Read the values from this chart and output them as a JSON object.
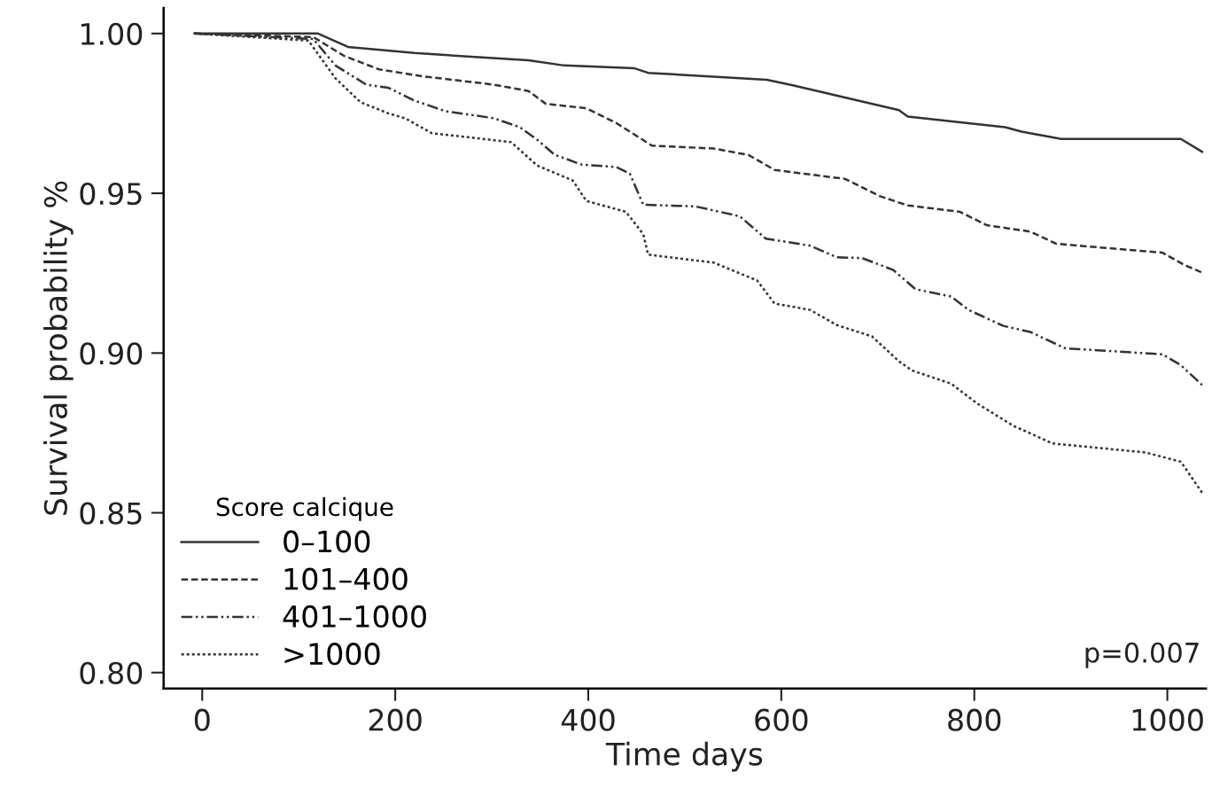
{
  "chart_data": {
    "type": "line",
    "xlabel": "Time days",
    "ylabel": "Survival probability %",
    "legend_title": "Score calcique",
    "legend": "bottom left",
    "grid": false,
    "marker": "none",
    "xlim": [
      -40,
      1040
    ],
    "ylim": [
      0.795,
      1.008
    ],
    "xticks": [
      0,
      200,
      400,
      600,
      800,
      1000
    ],
    "yticks": [
      {
        "value": 0.8,
        "label": "0.80"
      },
      {
        "value": 0.85,
        "label": "0.85"
      },
      {
        "value": 0.9,
        "label": "0.90"
      },
      {
        "value": 0.95,
        "label": "0.95"
      },
      {
        "value": 1.0,
        "label": "1.00"
      }
    ],
    "annotations": [
      "p=0.007"
    ],
    "series": [
      {
        "name": "0–100",
        "color": "#333333",
        "line_style": "solid",
        "x": [
          -8,
          120,
          151,
          220,
          338,
          375,
          448,
          462,
          585,
          612,
          722,
          731,
          832,
          849,
          890,
          1014,
          1036
        ],
        "values": [
          1.0,
          1.0,
          0.9958,
          0.9939,
          0.9916,
          0.99,
          0.9891,
          0.9877,
          0.9855,
          0.9838,
          0.976,
          0.974,
          0.9707,
          0.9693,
          0.967,
          0.967,
          0.963
        ]
      },
      {
        "name": "101–400",
        "color": "#333333",
        "line_style": "dashed",
        "x": [
          -8,
          115,
          147,
          183,
          229,
          302,
          338,
          356,
          398,
          429,
          466,
          530,
          566,
          593,
          666,
          703,
          731,
          785,
          813,
          858,
          885,
          995,
          1018,
          1036
        ],
        "values": [
          1.0,
          0.9989,
          0.993,
          0.9888,
          0.9866,
          0.984,
          0.982,
          0.978,
          0.9766,
          0.972,
          0.9649,
          0.964,
          0.962,
          0.9573,
          0.9545,
          0.949,
          0.9462,
          0.9442,
          0.94,
          0.938,
          0.9342,
          0.9314,
          0.9275,
          0.9252
        ]
      },
      {
        "name": "401–1000",
        "color": "#333333",
        "line_style": "dashdot",
        "x": [
          -8,
          115,
          138,
          170,
          193,
          220,
          252,
          302,
          329,
          347,
          365,
          393,
          429,
          443,
          457,
          511,
          557,
          584,
          630,
          657,
          684,
          716,
          739,
          776,
          794,
          830,
          858,
          894,
          995,
          1014,
          1036
        ],
        "values": [
          1.0,
          0.9983,
          0.99,
          0.984,
          0.983,
          0.979,
          0.9757,
          0.9735,
          0.9707,
          0.9668,
          0.9621,
          0.959,
          0.9582,
          0.9562,
          0.9464,
          0.9459,
          0.9428,
          0.9358,
          0.9336,
          0.93,
          0.9297,
          0.926,
          0.92,
          0.9177,
          0.9135,
          0.9085,
          0.9066,
          0.9015,
          0.8996,
          0.8962,
          0.89
        ]
      },
      {
        "name": ">1000",
        "color": "#333333",
        "line_style": "dotted",
        "x": [
          -8,
          110,
          138,
          164,
          193,
          210,
          238,
          274,
          320,
          347,
          384,
          398,
          439,
          457,
          462,
          530,
          575,
          593,
          630,
          657,
          694,
          722,
          735,
          776,
          803,
          840,
          881,
          977,
          1014,
          1036
        ],
        "values": [
          1.0,
          0.9978,
          0.986,
          0.9785,
          0.975,
          0.9735,
          0.9688,
          0.9676,
          0.966,
          0.9587,
          0.954,
          0.9476,
          0.9442,
          0.9372,
          0.9308,
          0.9283,
          0.9227,
          0.9155,
          0.9135,
          0.9088,
          0.9052,
          0.8974,
          0.8946,
          0.8904,
          0.8842,
          0.8773,
          0.8717,
          0.8689,
          0.866,
          0.8563
        ]
      }
    ]
  }
}
